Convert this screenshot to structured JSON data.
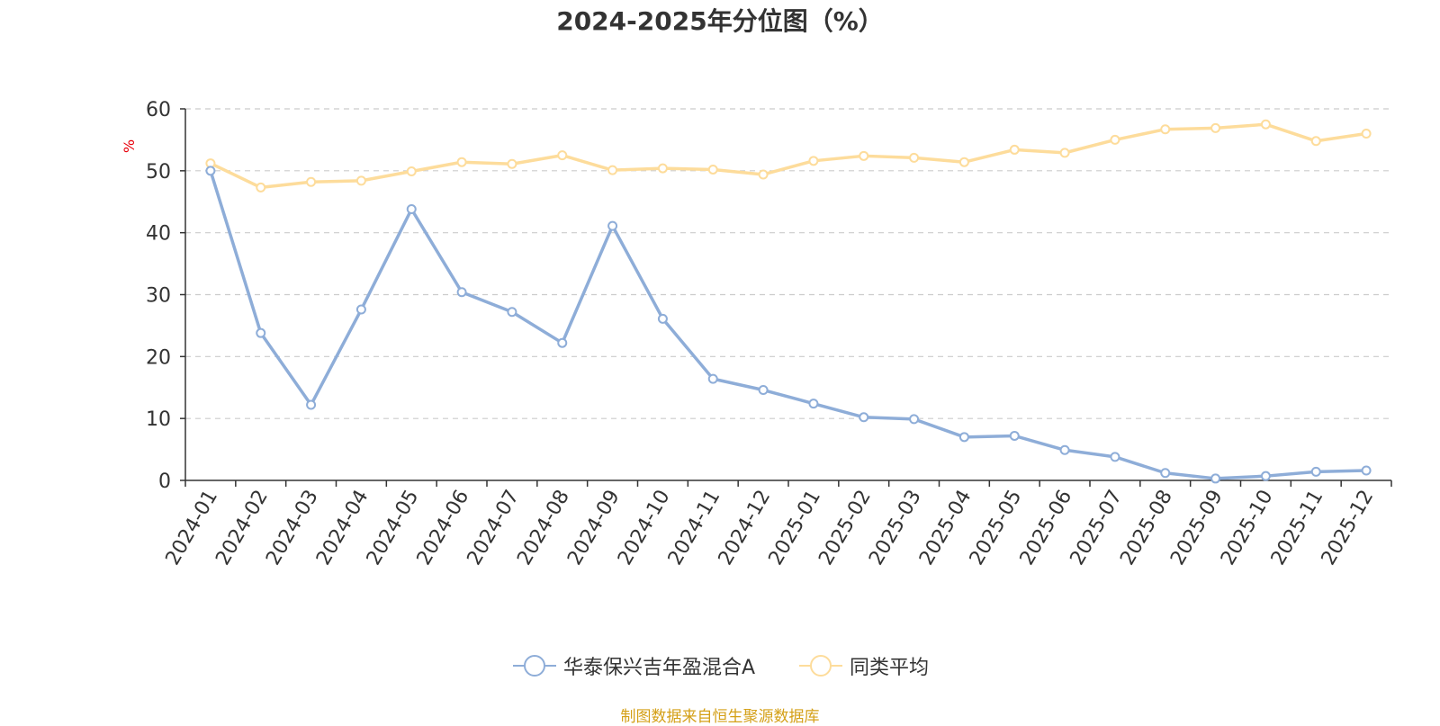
{
  "title": "2024-2025年分位图（%）",
  "source": "制图数据来自恒生聚源数据库",
  "chart_data": {
    "type": "line",
    "ylabel": "%",
    "ylim": [
      0,
      60
    ],
    "yticks": [
      0,
      10,
      20,
      30,
      40,
      50,
      60
    ],
    "grid": true,
    "legend_position": "bottom",
    "categories": [
      "2024-01",
      "2024-02",
      "2024-03",
      "2024-04",
      "2024-05",
      "2024-06",
      "2024-07",
      "2024-08",
      "2024-09",
      "2024-10",
      "2024-11",
      "2024-12",
      "2025-01",
      "2025-02",
      "2025-03",
      "2025-04",
      "2025-05",
      "2025-06",
      "2025-07",
      "2025-08",
      "2025-09",
      "2025-10",
      "2025-11",
      "2025-12"
    ],
    "series": [
      {
        "name": "华泰保兴吉年盈混合A",
        "color": "#8eadd8",
        "values": [
          50.0,
          23.8,
          12.2,
          27.6,
          43.8,
          30.4,
          27.2,
          22.2,
          41.1,
          26.1,
          16.4,
          14.6,
          12.4,
          10.2,
          9.9,
          7.0,
          7.2,
          4.9,
          3.8,
          1.2,
          0.3,
          0.7,
          1.4,
          1.6
        ]
      },
      {
        "name": "同类平均",
        "color": "#fddc9b",
        "values": [
          51.2,
          47.3,
          48.2,
          48.4,
          49.9,
          51.4,
          51.1,
          52.5,
          50.1,
          50.4,
          50.2,
          49.4,
          51.6,
          52.4,
          52.1,
          51.4,
          53.4,
          52.9,
          55.0,
          56.7,
          56.9,
          57.5,
          54.8,
          56.0
        ]
      }
    ]
  }
}
